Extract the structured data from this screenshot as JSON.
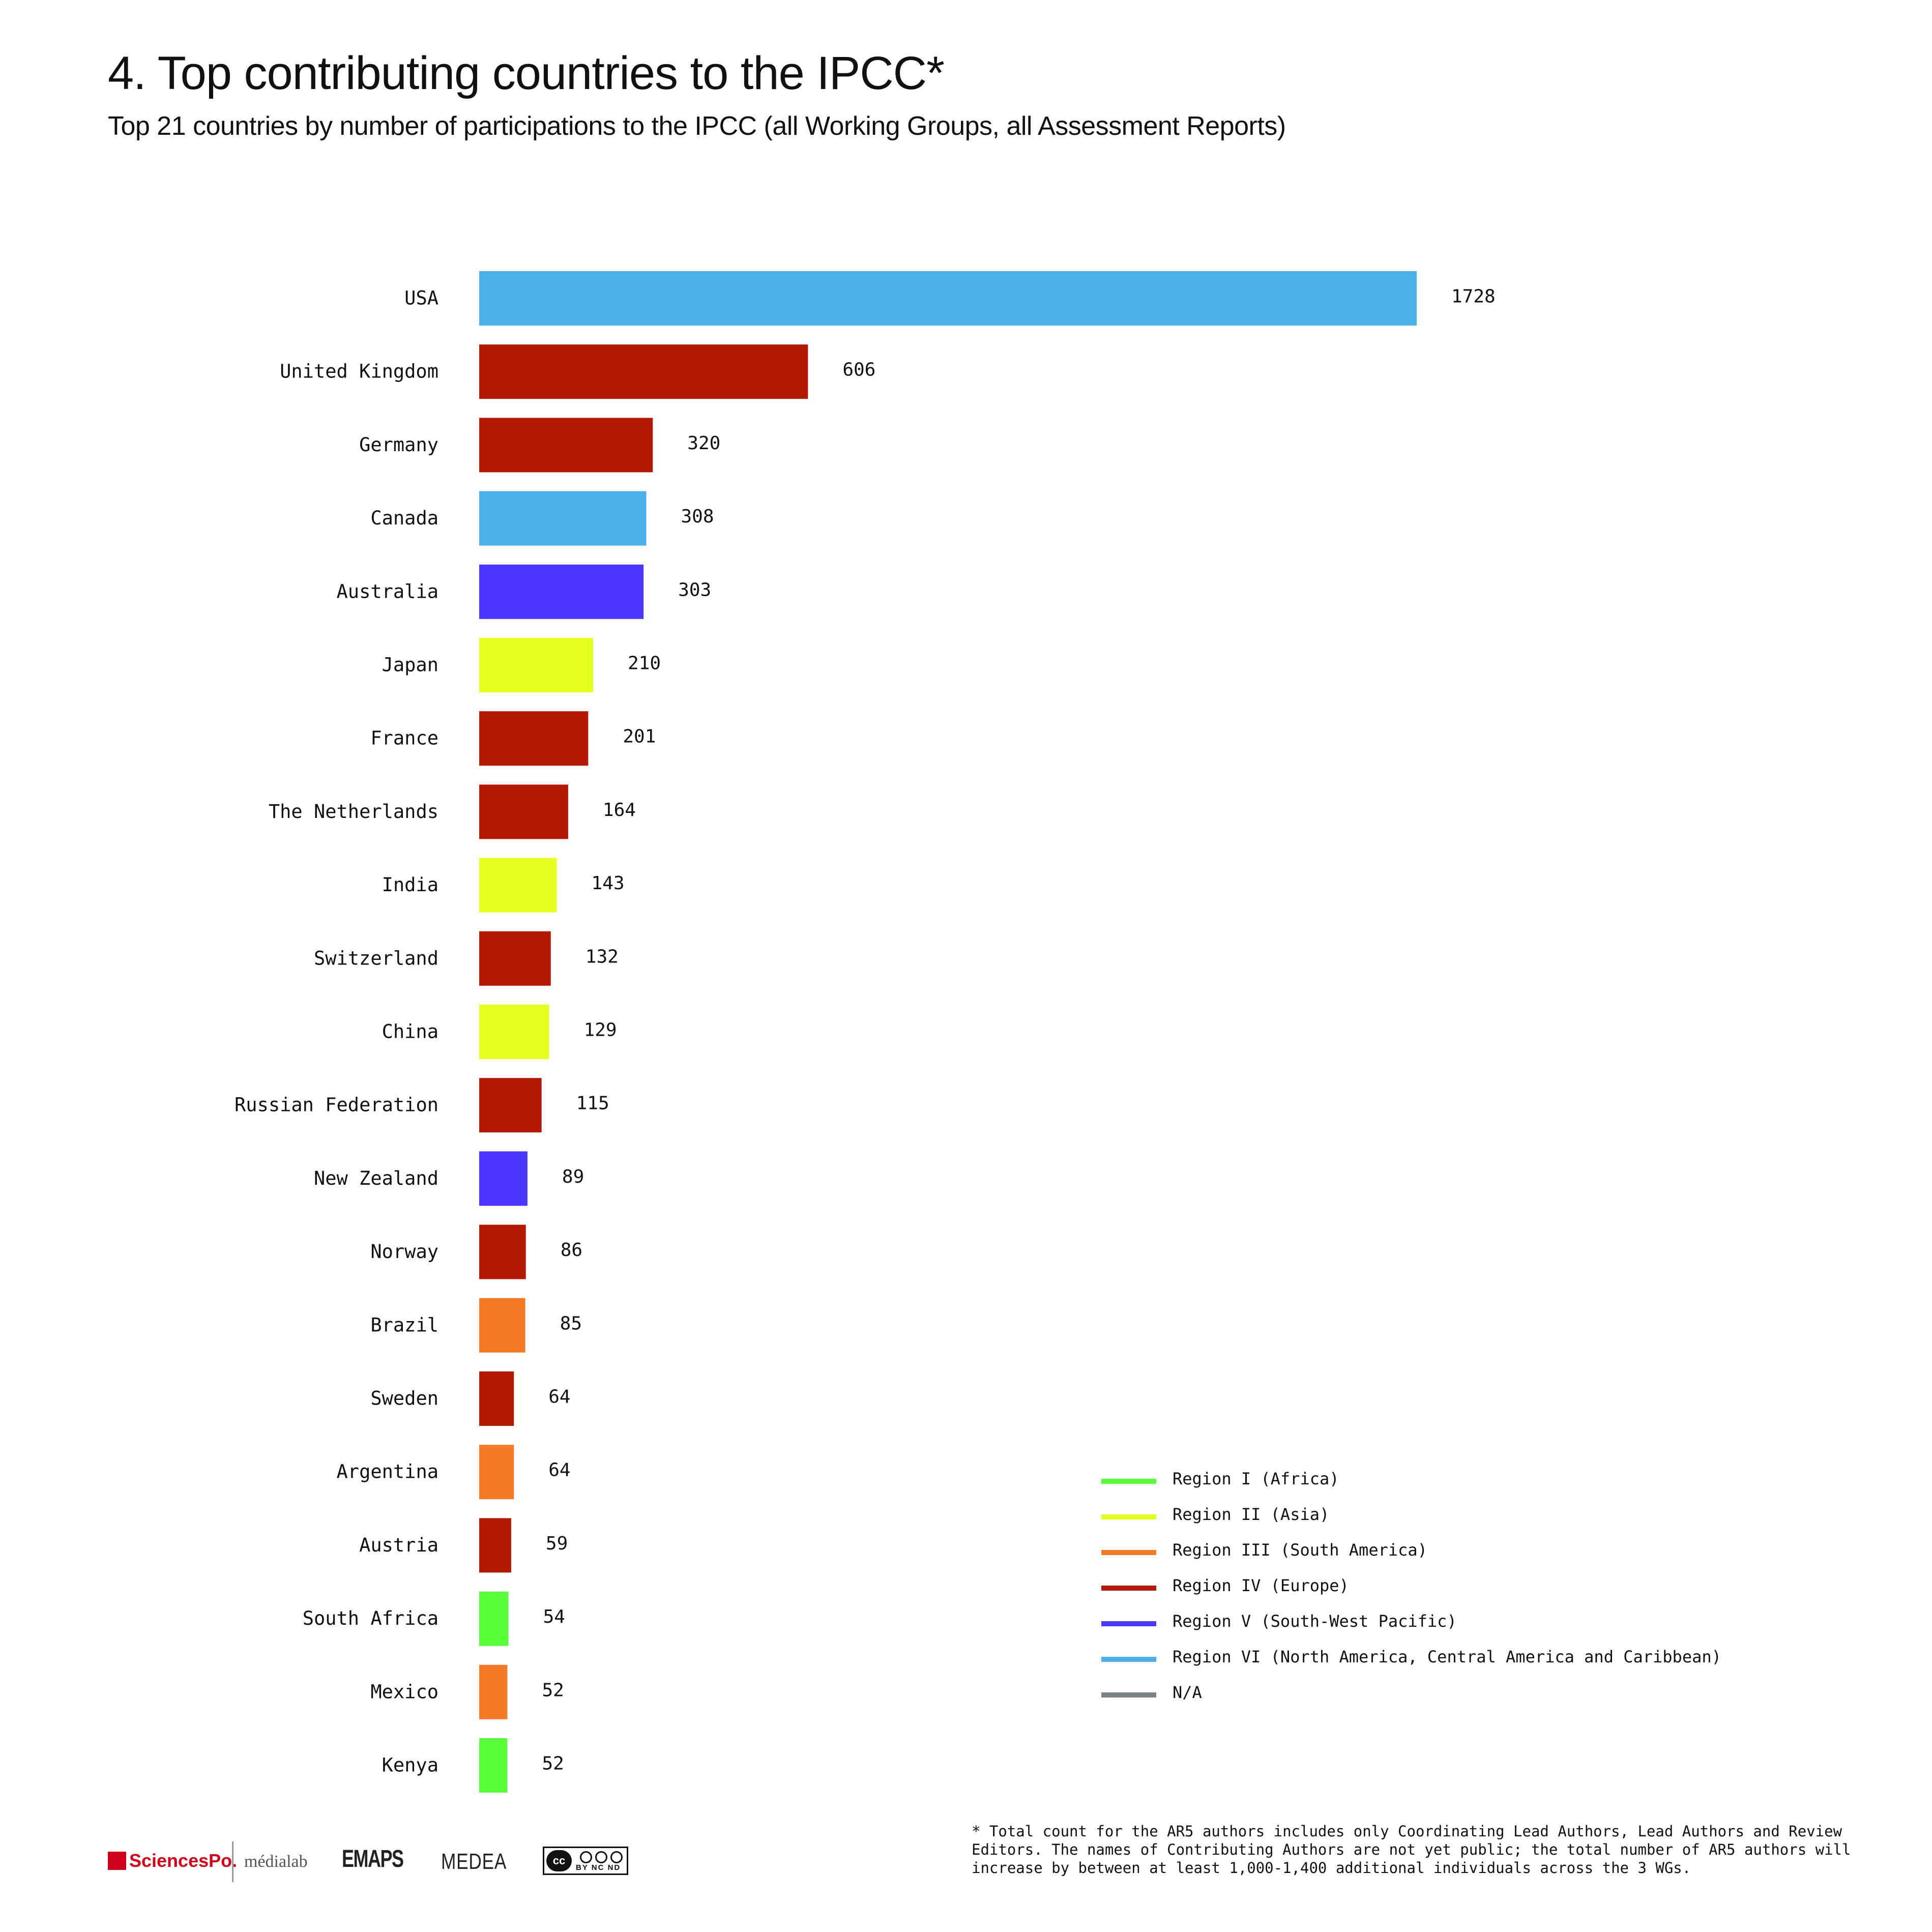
{
  "header": {
    "title": "4. Top contributing countries to the IPCC*",
    "subtitle": "Top 21 countries by number of participations to the IPCC (all Working Groups, all Assessment Reports)"
  },
  "chart_data": {
    "type": "bar",
    "orientation": "horizontal",
    "title": "",
    "xlabel": "",
    "ylabel": "",
    "grid": false,
    "legend_position": "bottom-right",
    "categories": [
      "USA",
      "United Kingdom",
      "Germany",
      "Canada",
      "Australia",
      "Japan",
      "France",
      "The Netherlands",
      "India",
      "Switzerland",
      "China",
      "Russian Federation",
      "New Zealand",
      "Norway",
      "Brazil",
      "Sweden",
      "Argentina",
      "Austria",
      "South Africa",
      "Mexico",
      "Kenya"
    ],
    "values": [
      1728,
      606,
      320,
      308,
      303,
      210,
      201,
      164,
      143,
      132,
      129,
      115,
      89,
      86,
      85,
      64,
      64,
      59,
      54,
      52,
      52
    ],
    "regions": [
      "VI",
      "IV",
      "IV",
      "VI",
      "V",
      "II",
      "IV",
      "IV",
      "II",
      "IV",
      "II",
      "IV",
      "V",
      "IV",
      "III",
      "IV",
      "III",
      "IV",
      "I",
      "III",
      "I"
    ],
    "xlim": [
      0,
      1728
    ]
  },
  "legend": {
    "items": [
      {
        "key": "I",
        "label": "Region I (Africa)",
        "color": "#5aff3c"
      },
      {
        "key": "II",
        "label": "Region II (Asia)",
        "color": "#e5ff1e"
      },
      {
        "key": "III",
        "label": "Region III (South America)",
        "color": "#f57a28"
      },
      {
        "key": "IV",
        "label": "Region IV (Europe)",
        "color": "#b41905"
      },
      {
        "key": "V",
        "label": "Region V (South-West Pacific)",
        "color": "#4b37ff"
      },
      {
        "key": "VI",
        "label": "Region VI (North America, Central America and Caribbean)",
        "color": "#4bb0e8"
      },
      {
        "key": "NA",
        "label": "N/A",
        "color": "#788284"
      }
    ]
  },
  "footnote": "* Total count for the AR5 authors includes only Coordinating Lead Authors, Lead Authors and Review Editors. The names of Contributing Authors are not yet public; the total number of AR5 authors will increase by between at least 1,000-1,400 additional individuals across the 3 WGs.",
  "logos": {
    "sciencespo": "SciencesPo.",
    "medialab": "médialab",
    "emaps": "EMAPS",
    "medea": "MEDEA",
    "cc_icon": "creative-commons-by-nc-nd-icon"
  }
}
